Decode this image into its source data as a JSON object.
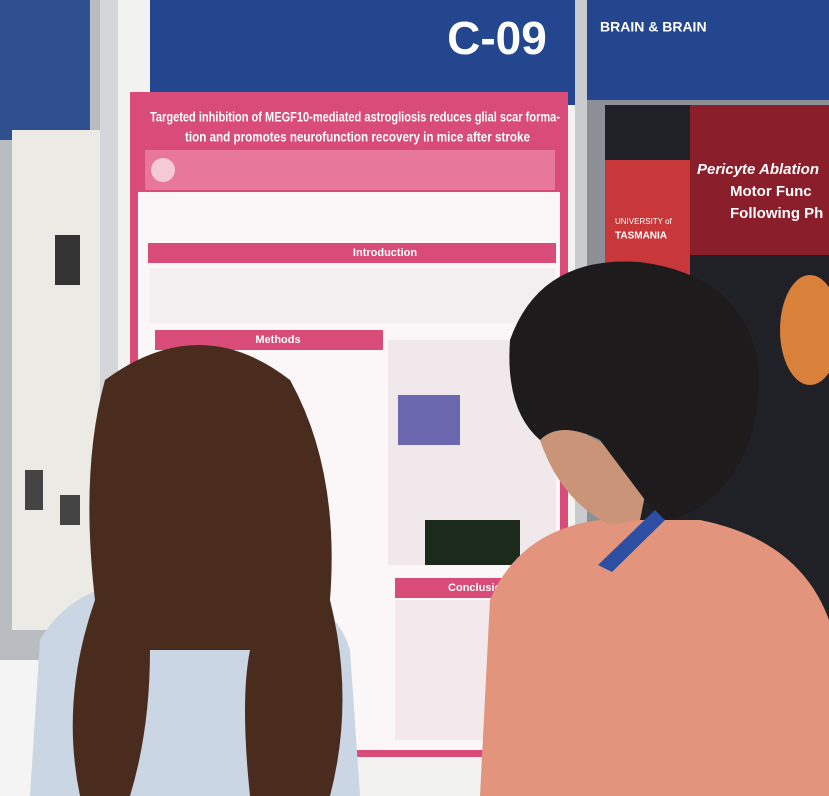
{
  "booth": {
    "number": "C-09",
    "banner": "BRAIN & BRAIN"
  },
  "poster": {
    "title_lines": [
      "Targeted inhibition of MEGF10-mediated astrogliosis reduces glial scar forma-",
      "tion and promotes neurofunction recovery in mice after stroke"
    ],
    "sections": [
      "Introduction",
      "Methods",
      "Conclusion"
    ]
  },
  "right_poster": {
    "title_lines": [
      "Pericyte Ablation",
      "Motor Func",
      "Following Ph"
    ],
    "institution": [
      "UNIVERSITY of",
      "TASMANIA"
    ]
  }
}
